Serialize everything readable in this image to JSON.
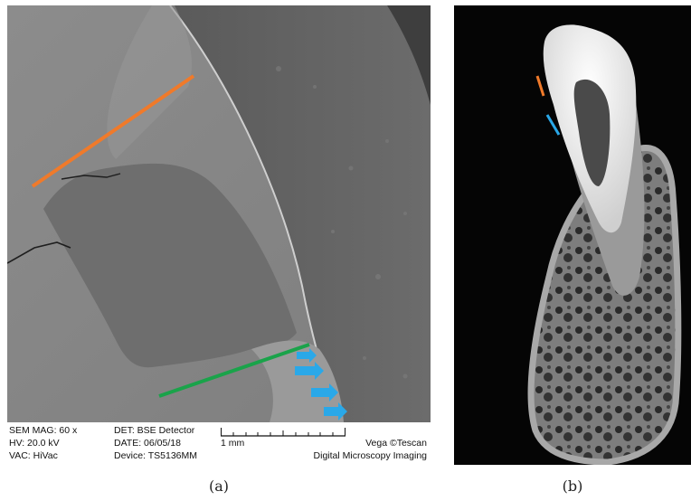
{
  "panel_a": {
    "caption": "(a)",
    "info": {
      "sem_mag": "SEM MAG: 60 x",
      "hv": "HV:  20.0 kV",
      "vac": "VAC: HiVac",
      "det": "DET: BSE Detector",
      "date": "DATE: 06/05/18",
      "device": "Device: TS5136MM",
      "scale": "1 mm",
      "brand": "Vega ©Tescan",
      "imaging": "Digital Microscopy Imaging"
    },
    "colors": {
      "orange_line": "#f07a2a",
      "green_line": "#1aa34a",
      "blue_arrows": "#2aa8e8"
    }
  },
  "panel_b": {
    "caption": "(b)",
    "colors": {
      "orange_marker": "#f07a2a",
      "blue_marker": "#2aa8e8"
    }
  }
}
